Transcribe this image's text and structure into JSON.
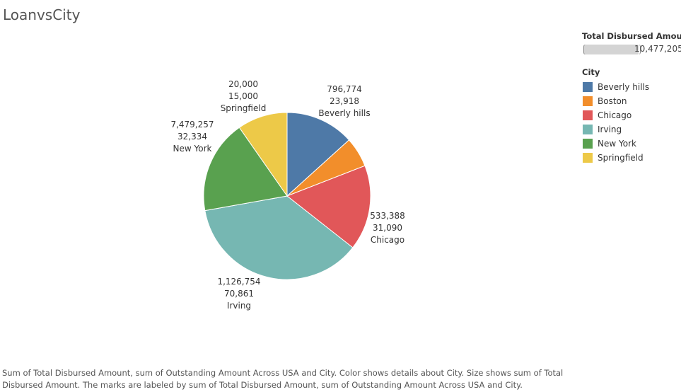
{
  "sheet_title": "LoanvsCity",
  "chart_data": {
    "type": "pie",
    "title": "LoanvsCity",
    "value_field": "Total Disbursed Amount",
    "secondary_field": "Outstanding Amount Across USA",
    "slices": [
      {
        "name": "Beverly hills",
        "value": 796774,
        "outstanding": 23918,
        "color": "#4e79a7",
        "label_value": "796,774",
        "label_outstanding": "23,918"
      },
      {
        "name": "Boston",
        "value": 0,
        "outstanding": 0,
        "color": "#f28e2b",
        "label_value": "",
        "label_outstanding": ""
      },
      {
        "name": "Chicago",
        "value": 533388,
        "outstanding": 31090,
        "color": "#e15759",
        "label_value": "533,388",
        "label_outstanding": "31,090"
      },
      {
        "name": "Irving",
        "value": 1126754,
        "outstanding": 70861,
        "color": "#76b7b2",
        "label_value": "1,126,754",
        "label_outstanding": "70,861"
      },
      {
        "name": "New York",
        "value": 7479257,
        "outstanding": 32334,
        "color": "#59a14f",
        "label_value": "7,479,257",
        "label_outstanding": "32,334"
      },
      {
        "name": "Springfield",
        "value": 20000,
        "outstanding": 15000,
        "color": "#edc948",
        "label_value": "20,000",
        "label_outstanding": "15,000"
      }
    ],
    "visual_shares": {
      "Beverly hills": 0.133,
      "Boston": 0.058,
      "Chicago": 0.165,
      "Irving": 0.366,
      "New York": 0.181,
      "Springfield": 0.097
    }
  },
  "legend": {
    "size_title": "Total Disbursed Amount",
    "size_max": "10,477,205",
    "size_max_value": 10477205,
    "color_title": "City",
    "items": [
      {
        "label": "Beverly hills",
        "color": "#4e79a7"
      },
      {
        "label": "Boston",
        "color": "#f28e2b"
      },
      {
        "label": "Chicago",
        "color": "#e15759"
      },
      {
        "label": "Irving",
        "color": "#76b7b2"
      },
      {
        "label": "New York",
        "color": "#59a14f"
      },
      {
        "label": "Springfield",
        "color": "#edc948"
      }
    ]
  },
  "caption": "Sum of Total Disbursed Amount, sum of Outstanding Amount Across USA and City.  Color shows details about City.  Size shows sum of Total Disbursed Amount.  The marks are labeled by sum of Total Disbursed Amount, sum of Outstanding Amount Across USA and City."
}
